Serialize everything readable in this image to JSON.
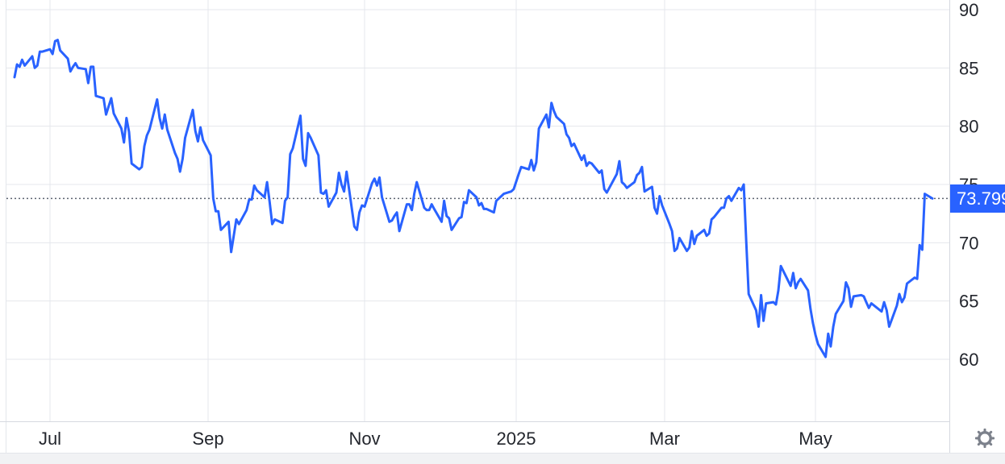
{
  "widget": {
    "last_price_label": "73.799"
  },
  "colors": {
    "line": "#2962ff",
    "label_bg": "#2962ff",
    "label_text": "#ffffff",
    "grid": "#e4e7ec",
    "axis": "#d6d9e0",
    "text": "#23262d",
    "dotted": "#5d6370",
    "gear": "#7c818b",
    "bottom_bar_bg": "#f1f2f4"
  },
  "icons": {
    "bottom_right": "settings-gear"
  },
  "chart_data": {
    "type": "line",
    "title": "",
    "xlabel": "",
    "ylabel": "",
    "grid": "on",
    "legend": "none",
    "line_color": "#2962ff",
    "last_price": 73.799,
    "ylim": [
      54.7,
      90.8
    ],
    "x_range": [
      "2024-06-17",
      "2025-06-16"
    ],
    "y_ticks": [
      90,
      85,
      80,
      75,
      70,
      65,
      60
    ],
    "x_ticks": [
      {
        "label": "Jul",
        "date": "2024-07-01"
      },
      {
        "label": "Sep",
        "date": "2024-09-01"
      },
      {
        "label": "Nov",
        "date": "2024-11-01"
      },
      {
        "label": "2025",
        "date": "2025-01-01"
      },
      {
        "label": "Mar",
        "date": "2025-03-01"
      },
      {
        "label": "May",
        "date": "2025-05-01"
      }
    ],
    "points": [
      [
        "2024-06-17",
        84.2
      ],
      [
        "2024-06-18",
        85.3
      ],
      [
        "2024-06-19",
        85.1
      ],
      [
        "2024-06-20",
        85.7
      ],
      [
        "2024-06-21",
        85.2
      ],
      [
        "2024-06-24",
        86.0
      ],
      [
        "2024-06-25",
        85.0
      ],
      [
        "2024-06-26",
        85.2
      ],
      [
        "2024-06-27",
        86.4
      ],
      [
        "2024-06-28",
        86.4
      ],
      [
        "2024-07-01",
        86.6
      ],
      [
        "2024-07-02",
        86.2
      ],
      [
        "2024-07-03",
        87.3
      ],
      [
        "2024-07-04",
        87.4
      ],
      [
        "2024-07-05",
        86.5
      ],
      [
        "2024-07-08",
        85.8
      ],
      [
        "2024-07-09",
        84.7
      ],
      [
        "2024-07-10",
        85.1
      ],
      [
        "2024-07-11",
        85.4
      ],
      [
        "2024-07-12",
        85.0
      ],
      [
        "2024-07-15",
        84.9
      ],
      [
        "2024-07-16",
        83.7
      ],
      [
        "2024-07-17",
        85.1
      ],
      [
        "2024-07-18",
        85.1
      ],
      [
        "2024-07-19",
        82.6
      ],
      [
        "2024-07-22",
        82.4
      ],
      [
        "2024-07-23",
        81.0
      ],
      [
        "2024-07-24",
        81.7
      ],
      [
        "2024-07-25",
        82.4
      ],
      [
        "2024-07-26",
        81.1
      ],
      [
        "2024-07-29",
        79.8
      ],
      [
        "2024-07-30",
        78.6
      ],
      [
        "2024-07-31",
        80.7
      ],
      [
        "2024-08-01",
        79.5
      ],
      [
        "2024-08-02",
        76.8
      ],
      [
        "2024-08-05",
        76.3
      ],
      [
        "2024-08-06",
        76.5
      ],
      [
        "2024-08-07",
        78.3
      ],
      [
        "2024-08-08",
        79.2
      ],
      [
        "2024-08-09",
        79.7
      ],
      [
        "2024-08-12",
        82.3
      ],
      [
        "2024-08-13",
        80.7
      ],
      [
        "2024-08-14",
        79.8
      ],
      [
        "2024-08-15",
        81.0
      ],
      [
        "2024-08-16",
        79.7
      ],
      [
        "2024-08-19",
        77.7
      ],
      [
        "2024-08-20",
        77.2
      ],
      [
        "2024-08-21",
        76.1
      ],
      [
        "2024-08-22",
        77.2
      ],
      [
        "2024-08-23",
        79.0
      ],
      [
        "2024-08-26",
        81.4
      ],
      [
        "2024-08-27",
        79.6
      ],
      [
        "2024-08-28",
        78.7
      ],
      [
        "2024-08-29",
        79.9
      ],
      [
        "2024-08-30",
        78.8
      ],
      [
        "2024-09-02",
        77.5
      ],
      [
        "2024-09-03",
        73.8
      ],
      [
        "2024-09-04",
        72.7
      ],
      [
        "2024-09-05",
        72.7
      ],
      [
        "2024-09-06",
        71.1
      ],
      [
        "2024-09-09",
        71.8
      ],
      [
        "2024-09-10",
        69.2
      ],
      [
        "2024-09-11",
        70.6
      ],
      [
        "2024-09-12",
        72.0
      ],
      [
        "2024-09-13",
        71.6
      ],
      [
        "2024-09-16",
        72.8
      ],
      [
        "2024-09-17",
        73.7
      ],
      [
        "2024-09-18",
        73.7
      ],
      [
        "2024-09-19",
        74.9
      ],
      [
        "2024-09-20",
        74.5
      ],
      [
        "2024-09-23",
        73.9
      ],
      [
        "2024-09-24",
        75.2
      ],
      [
        "2024-09-25",
        73.5
      ],
      [
        "2024-09-26",
        71.6
      ],
      [
        "2024-09-27",
        72.0
      ],
      [
        "2024-09-30",
        71.7
      ],
      [
        "2024-10-01",
        73.6
      ],
      [
        "2024-10-02",
        73.9
      ],
      [
        "2024-10-03",
        77.6
      ],
      [
        "2024-10-04",
        78.1
      ],
      [
        "2024-10-07",
        80.9
      ],
      [
        "2024-10-08",
        77.2
      ],
      [
        "2024-10-09",
        76.6
      ],
      [
        "2024-10-10",
        79.4
      ],
      [
        "2024-10-11",
        79.0
      ],
      [
        "2024-10-14",
        77.5
      ],
      [
        "2024-10-15",
        74.3
      ],
      [
        "2024-10-16",
        74.2
      ],
      [
        "2024-10-17",
        74.5
      ],
      [
        "2024-10-18",
        73.1
      ],
      [
        "2024-10-21",
        74.3
      ],
      [
        "2024-10-22",
        76.0
      ],
      [
        "2024-10-23",
        75.0
      ],
      [
        "2024-10-24",
        74.4
      ],
      [
        "2024-10-25",
        76.1
      ],
      [
        "2024-10-28",
        71.4
      ],
      [
        "2024-10-29",
        71.1
      ],
      [
        "2024-10-30",
        72.6
      ],
      [
        "2024-10-31",
        73.2
      ],
      [
        "2024-11-01",
        73.1
      ],
      [
        "2024-11-04",
        75.1
      ],
      [
        "2024-11-05",
        75.5
      ],
      [
        "2024-11-06",
        74.9
      ],
      [
        "2024-11-07",
        75.6
      ],
      [
        "2024-11-08",
        73.9
      ],
      [
        "2024-11-11",
        71.8
      ],
      [
        "2024-11-12",
        71.9
      ],
      [
        "2024-11-13",
        72.3
      ],
      [
        "2024-11-14",
        72.6
      ],
      [
        "2024-11-15",
        71.0
      ],
      [
        "2024-11-18",
        73.3
      ],
      [
        "2024-11-19",
        73.3
      ],
      [
        "2024-11-20",
        72.8
      ],
      [
        "2024-11-21",
        74.2
      ],
      [
        "2024-11-22",
        75.2
      ],
      [
        "2024-11-25",
        73.0
      ],
      [
        "2024-11-26",
        72.8
      ],
      [
        "2024-11-27",
        72.8
      ],
      [
        "2024-11-28",
        73.3
      ],
      [
        "2024-11-29",
        72.9
      ],
      [
        "2024-12-02",
        71.8
      ],
      [
        "2024-12-03",
        73.6
      ],
      [
        "2024-12-04",
        72.3
      ],
      [
        "2024-12-05",
        72.1
      ],
      [
        "2024-12-06",
        71.1
      ],
      [
        "2024-12-09",
        72.1
      ],
      [
        "2024-12-10",
        72.2
      ],
      [
        "2024-12-11",
        73.5
      ],
      [
        "2024-12-12",
        73.4
      ],
      [
        "2024-12-13",
        74.5
      ],
      [
        "2024-12-16",
        73.9
      ],
      [
        "2024-12-17",
        73.2
      ],
      [
        "2024-12-18",
        73.4
      ],
      [
        "2024-12-19",
        72.9
      ],
      [
        "2024-12-20",
        72.9
      ],
      [
        "2024-12-23",
        72.6
      ],
      [
        "2024-12-24",
        73.6
      ],
      [
        "2024-12-27",
        74.2
      ],
      [
        "2024-12-30",
        74.4
      ],
      [
        "2024-12-31",
        74.6
      ],
      [
        "2025-01-02",
        75.9
      ],
      [
        "2025-01-03",
        76.5
      ],
      [
        "2025-01-06",
        76.3
      ],
      [
        "2025-01-07",
        77.1
      ],
      [
        "2025-01-08",
        76.2
      ],
      [
        "2025-01-09",
        76.9
      ],
      [
        "2025-01-10",
        79.8
      ],
      [
        "2025-01-13",
        81.0
      ],
      [
        "2025-01-14",
        79.9
      ],
      [
        "2025-01-15",
        82.0
      ],
      [
        "2025-01-16",
        81.3
      ],
      [
        "2025-01-17",
        80.8
      ],
      [
        "2025-01-20",
        80.2
      ],
      [
        "2025-01-21",
        79.3
      ],
      [
        "2025-01-22",
        79.0
      ],
      [
        "2025-01-23",
        78.3
      ],
      [
        "2025-01-24",
        78.5
      ],
      [
        "2025-01-27",
        77.1
      ],
      [
        "2025-01-28",
        77.5
      ],
      [
        "2025-01-29",
        76.6
      ],
      [
        "2025-01-30",
        76.9
      ],
      [
        "2025-01-31",
        76.8
      ],
      [
        "2025-02-03",
        76.0
      ],
      [
        "2025-02-04",
        76.2
      ],
      [
        "2025-02-05",
        74.6
      ],
      [
        "2025-02-06",
        74.3
      ],
      [
        "2025-02-07",
        74.7
      ],
      [
        "2025-02-10",
        75.9
      ],
      [
        "2025-02-11",
        77.0
      ],
      [
        "2025-02-12",
        75.2
      ],
      [
        "2025-02-13",
        75.0
      ],
      [
        "2025-02-14",
        74.7
      ],
      [
        "2025-02-17",
        75.2
      ],
      [
        "2025-02-18",
        75.8
      ],
      [
        "2025-02-19",
        76.0
      ],
      [
        "2025-02-20",
        76.5
      ],
      [
        "2025-02-21",
        74.4
      ],
      [
        "2025-02-24",
        74.8
      ],
      [
        "2025-02-25",
        73.0
      ],
      [
        "2025-02-26",
        72.5
      ],
      [
        "2025-02-27",
        74.0
      ],
      [
        "2025-02-28",
        73.2
      ],
      [
        "2025-03-03",
        71.6
      ],
      [
        "2025-03-04",
        71.0
      ],
      [
        "2025-03-05",
        69.3
      ],
      [
        "2025-03-06",
        69.5
      ],
      [
        "2025-03-07",
        70.4
      ],
      [
        "2025-03-10",
        69.3
      ],
      [
        "2025-03-11",
        69.6
      ],
      [
        "2025-03-12",
        71.0
      ],
      [
        "2025-03-13",
        69.9
      ],
      [
        "2025-03-14",
        70.6
      ],
      [
        "2025-03-17",
        71.1
      ],
      [
        "2025-03-18",
        70.6
      ],
      [
        "2025-03-19",
        70.8
      ],
      [
        "2025-03-20",
        72.0
      ],
      [
        "2025-03-21",
        72.2
      ],
      [
        "2025-03-24",
        73.0
      ],
      [
        "2025-03-25",
        73.0
      ],
      [
        "2025-03-26",
        73.8
      ],
      [
        "2025-03-27",
        74.0
      ],
      [
        "2025-03-28",
        73.6
      ],
      [
        "2025-03-31",
        74.7
      ],
      [
        "2025-04-01",
        74.5
      ],
      [
        "2025-04-02",
        75.0
      ],
      [
        "2025-04-03",
        70.1
      ],
      [
        "2025-04-04",
        65.6
      ],
      [
        "2025-04-07",
        64.2
      ],
      [
        "2025-04-08",
        62.8
      ],
      [
        "2025-04-09",
        65.5
      ],
      [
        "2025-04-10",
        63.3
      ],
      [
        "2025-04-11",
        64.8
      ],
      [
        "2025-04-14",
        64.9
      ],
      [
        "2025-04-15",
        64.7
      ],
      [
        "2025-04-16",
        65.9
      ],
      [
        "2025-04-17",
        68.0
      ],
      [
        "2025-04-21",
        66.3
      ],
      [
        "2025-04-22",
        67.4
      ],
      [
        "2025-04-23",
        66.1
      ],
      [
        "2025-04-24",
        66.6
      ],
      [
        "2025-04-25",
        66.9
      ],
      [
        "2025-04-28",
        65.9
      ],
      [
        "2025-04-29",
        64.3
      ],
      [
        "2025-04-30",
        63.1
      ],
      [
        "2025-05-01",
        62.1
      ],
      [
        "2025-05-02",
        61.3
      ],
      [
        "2025-05-05",
        60.2
      ],
      [
        "2025-05-06",
        62.2
      ],
      [
        "2025-05-07",
        61.1
      ],
      [
        "2025-05-08",
        62.8
      ],
      [
        "2025-05-09",
        63.9
      ],
      [
        "2025-05-12",
        65.0
      ],
      [
        "2025-05-13",
        66.6
      ],
      [
        "2025-05-14",
        66.1
      ],
      [
        "2025-05-15",
        64.5
      ],
      [
        "2025-05-16",
        65.4
      ],
      [
        "2025-05-19",
        65.5
      ],
      [
        "2025-05-20",
        65.4
      ],
      [
        "2025-05-21",
        64.9
      ],
      [
        "2025-05-22",
        64.4
      ],
      [
        "2025-05-23",
        64.8
      ],
      [
        "2025-05-27",
        64.1
      ],
      [
        "2025-05-28",
        64.9
      ],
      [
        "2025-05-29",
        64.2
      ],
      [
        "2025-05-30",
        62.8
      ],
      [
        "2025-06-02",
        64.6
      ],
      [
        "2025-06-03",
        65.6
      ],
      [
        "2025-06-04",
        64.9
      ],
      [
        "2025-06-05",
        65.3
      ],
      [
        "2025-06-06",
        66.5
      ],
      [
        "2025-06-09",
        67.0
      ],
      [
        "2025-06-10",
        66.9
      ],
      [
        "2025-06-11",
        69.8
      ],
      [
        "2025-06-12",
        69.4
      ],
      [
        "2025-06-13",
        74.2
      ],
      [
        "2025-06-16",
        73.799
      ]
    ]
  }
}
